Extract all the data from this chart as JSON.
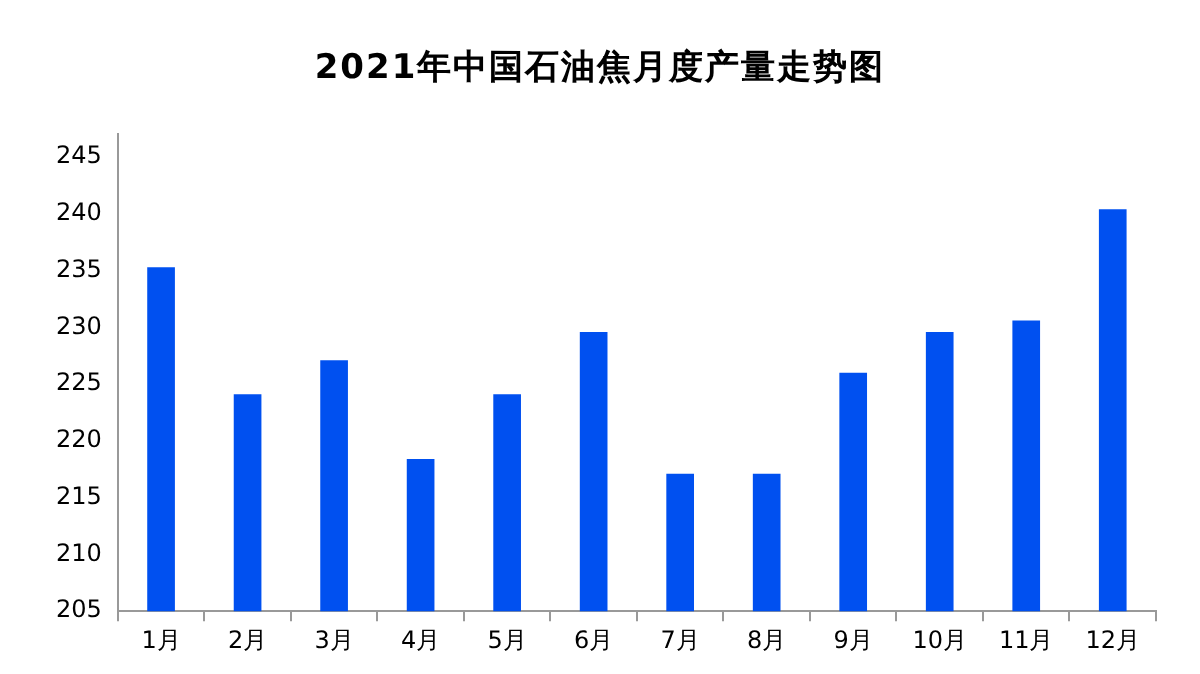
{
  "chart_data": {
    "type": "bar",
    "title": "2021年中国石油焦月度产量走势图",
    "categories": [
      "1月",
      "2月",
      "3月",
      "4月",
      "5月",
      "6月",
      "7月",
      "8月",
      "9月",
      "10月",
      "11月",
      "12月"
    ],
    "values": [
      235.3,
      224.1,
      227.1,
      218.4,
      224.1,
      229.6,
      217.1,
      217.1,
      226.0,
      229.6,
      230.6,
      240.4
    ],
    "color": "#0050f0",
    "ylim": [
      205,
      247
    ],
    "yticks": [
      205,
      210,
      215,
      220,
      225,
      230,
      235,
      240,
      245
    ],
    "grid": false,
    "legend": false
  }
}
